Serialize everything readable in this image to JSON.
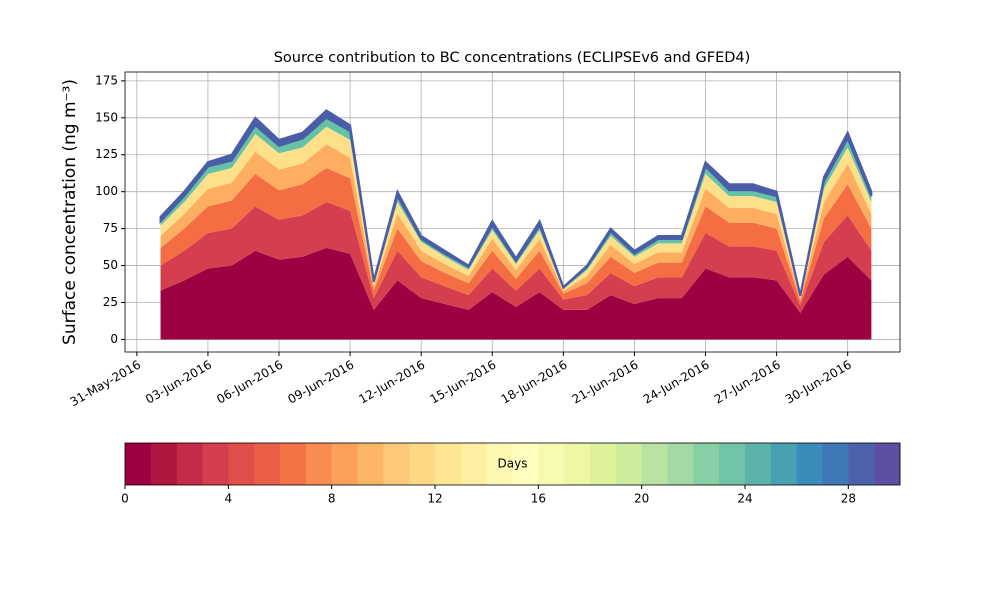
{
  "chart_data": {
    "type": "stacked_area",
    "title": "Source contribution to BC concentrations (ECLIPSEv6 and GFED4)",
    "y_label": "Surface concentration (ng m⁻³)",
    "x": [
      "2016-06-01",
      "2016-06-02",
      "2016-06-03",
      "2016-06-04",
      "2016-06-05",
      "2016-06-06",
      "2016-06-07",
      "2016-06-08",
      "2016-06-09",
      "2016-06-10",
      "2016-06-11",
      "2016-06-12",
      "2016-06-13",
      "2016-06-14",
      "2016-06-15",
      "2016-06-16",
      "2016-06-17",
      "2016-06-18",
      "2016-06-19",
      "2016-06-20",
      "2016-06-21",
      "2016-06-22",
      "2016-06-23",
      "2016-06-24",
      "2016-06-25",
      "2016-06-26",
      "2016-06-27",
      "2016-06-28",
      "2016-06-29",
      "2016-06-30",
      "2016-07-01"
    ],
    "series": [
      {
        "color": "#9e0142",
        "values": [
          33,
          40,
          48,
          50,
          60,
          54,
          56,
          62,
          58,
          20,
          40,
          28,
          24,
          20,
          32,
          22,
          32,
          20,
          20,
          30,
          24,
          28,
          28,
          48,
          42,
          42,
          40,
          18,
          44,
          56,
          40
        ]
      },
      {
        "color": "#d53e4f",
        "values": [
          17,
          20,
          24,
          25,
          30,
          27,
          28,
          31,
          29,
          8,
          20,
          14,
          12,
          10,
          16,
          11,
          16,
          7,
          10,
          15,
          12,
          14,
          14,
          24,
          21,
          21,
          20,
          5,
          22,
          28,
          20
        ]
      },
      {
        "color": "#f46d43",
        "values": [
          12,
          15,
          18,
          19,
          22,
          20,
          21,
          23,
          22,
          5,
          15,
          11,
          9,
          8,
          12,
          8,
          12,
          4,
          8,
          11,
          9,
          10,
          10,
          18,
          16,
          16,
          15,
          3,
          16,
          21,
          15
        ]
      },
      {
        "color": "#fdae61",
        "values": [
          8,
          10,
          12,
          12,
          15,
          14,
          14,
          16,
          14,
          3,
          10,
          7,
          6,
          5,
          8,
          6,
          8,
          2,
          5,
          8,
          6,
          7,
          7,
          12,
          10,
          10,
          10,
          2,
          11,
          14,
          10
        ]
      },
      {
        "color": "#fee08b",
        "values": [
          7,
          8,
          10,
          10,
          12,
          11,
          11,
          12,
          12,
          2,
          8,
          6,
          5,
          4,
          6,
          4,
          6,
          1,
          4,
          6,
          5,
          6,
          6,
          10,
          8,
          8,
          8,
          1,
          9,
          11,
          8
        ]
      },
      {
        "color": "#66c2a5",
        "values": [
          3,
          4,
          5,
          5,
          6,
          5,
          6,
          6,
          6,
          1,
          4,
          2,
          2,
          2,
          3,
          2,
          3,
          1,
          2,
          3,
          2,
          3,
          3,
          5,
          4,
          4,
          4,
          0.5,
          5,
          6,
          4
        ]
      },
      {
        "color": "#4a5ea8",
        "values": [
          3,
          3,
          3,
          4,
          5,
          4,
          4,
          5,
          4,
          1,
          3,
          2,
          2,
          1,
          3,
          2,
          3,
          0.5,
          1,
          2,
          2,
          2,
          2,
          3,
          4,
          4,
          3,
          0.5,
          3,
          4,
          3
        ]
      }
    ],
    "xlim": [
      "2016-05-30T12:00Z",
      "2016-07-02T05:00Z"
    ],
    "xticks": [
      {
        "value": "2016-05-31",
        "label": "31-May-2016"
      },
      {
        "value": "2016-06-03",
        "label": "03-Jun-2016"
      },
      {
        "value": "2016-06-06",
        "label": "06-Jun-2016"
      },
      {
        "value": "2016-06-09",
        "label": "09-Jun-2016"
      },
      {
        "value": "2016-06-12",
        "label": "12-Jun-2016"
      },
      {
        "value": "2016-06-15",
        "label": "15-Jun-2016"
      },
      {
        "value": "2016-06-18",
        "label": "18-Jun-2016"
      },
      {
        "value": "2016-06-21",
        "label": "21-Jun-2016"
      },
      {
        "value": "2016-06-24",
        "label": "24-Jun-2016"
      },
      {
        "value": "2016-06-27",
        "label": "27-Jun-2016"
      },
      {
        "value": "2016-06-30",
        "label": "30-Jun-2016"
      }
    ],
    "ylim": [
      -8.5,
      181
    ],
    "yticks": [
      0,
      25,
      50,
      75,
      100,
      125,
      150,
      175
    ],
    "grid": true,
    "colorbar": {
      "label": "Days",
      "lim": [
        0,
        30
      ],
      "ticks": [
        0,
        4,
        8,
        12,
        16,
        20,
        24,
        28
      ],
      "colors": [
        "#9e0142",
        "#b0173f",
        "#c52a48",
        "#d53e4f",
        "#e04f4a",
        "#eb5f46",
        "#f47245",
        "#f88c51",
        "#fba15c",
        "#fdb668",
        "#fdc877",
        "#fed884",
        "#fee593",
        "#feefa3",
        "#fff8b2",
        "#fffebe",
        "#f7fbb2",
        "#eef8a4",
        "#dff299",
        "#cceb9d",
        "#b8e3a2",
        "#a2d9a4",
        "#88cfa4",
        "#6fc4a5",
        "#5bb3a9",
        "#48a0b2",
        "#3a8cbb",
        "#3f77b7",
        "#4c63ac",
        "#5e4fa2"
      ]
    }
  }
}
